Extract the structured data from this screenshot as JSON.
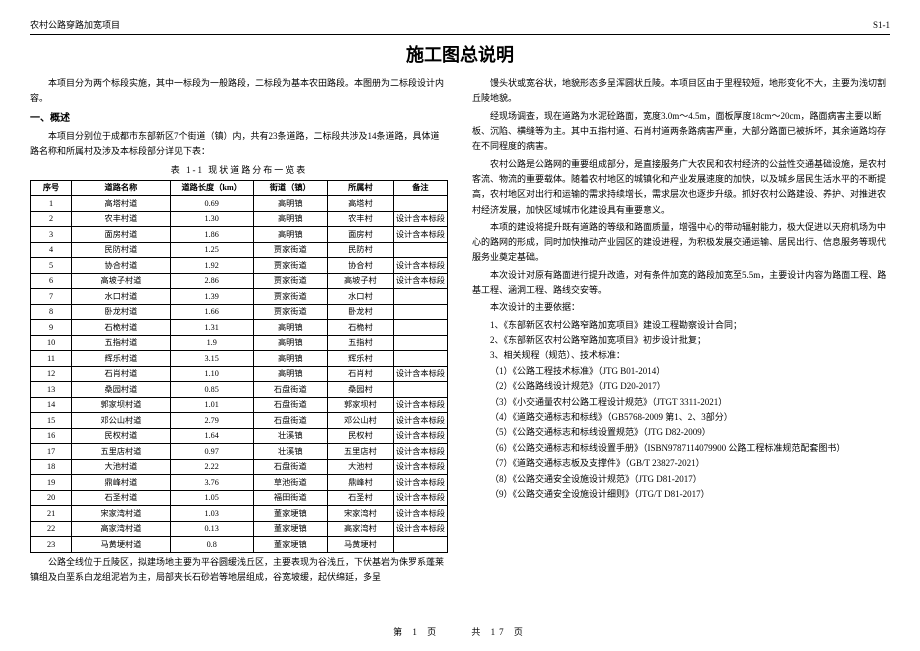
{
  "header": {
    "left": "农村公路穿路加宽项目",
    "right": "S1-1"
  },
  "title": "施工图总说明",
  "left": {
    "intro1": "本项目分为两个标段实施，其中一标段为一般路段，二标段为基本农田路段。本图册为二标段设计内容。",
    "section1": "一、概述",
    "intro2": "本项目分别位于成都市东部新区7个街道（镇）内，共有23条道路，二标段共涉及14条道路，具体道路名称和所属村及涉及本标段部分详见下表：",
    "table_caption": "表 1-1  现状道路分布一览表",
    "columns": [
      "序号",
      "道路名称",
      "道路长度（km）",
      "街道（镇）",
      "所属村",
      "备注"
    ],
    "rows": [
      [
        "1",
        "高塔村道",
        "0.69",
        "高明镇",
        "高塔村",
        ""
      ],
      [
        "2",
        "农丰村道",
        "1.30",
        "高明镇",
        "农丰村",
        "设计含本标段"
      ],
      [
        "3",
        "面房村道",
        "1.86",
        "高明镇",
        "面房村",
        "设计含本标段"
      ],
      [
        "4",
        "民防村道",
        "1.25",
        "贾家街道",
        "民防村",
        ""
      ],
      [
        "5",
        "协合村道",
        "1.92",
        "贾家街道",
        "协合村",
        "设计含本标段"
      ],
      [
        "6",
        "高坡子村道",
        "2.86",
        "贾家街道",
        "高坡子村",
        "设计含本标段"
      ],
      [
        "7",
        "水口村道",
        "1.39",
        "贾家街道",
        "水口村",
        ""
      ],
      [
        "8",
        "卧龙村道",
        "1.66",
        "贾家街道",
        "卧龙村",
        ""
      ],
      [
        "9",
        "石桅村道",
        "1.31",
        "高明镇",
        "石桅村",
        ""
      ],
      [
        "10",
        "五指村道",
        "1.9",
        "高明镇",
        "五指村",
        ""
      ],
      [
        "11",
        "辉乐村道",
        "3.15",
        "高明镇",
        "辉乐村",
        ""
      ],
      [
        "12",
        "石肖村道",
        "1.10",
        "高明镇",
        "石肖村",
        "设计含本标段"
      ],
      [
        "13",
        "桑园村道",
        "0.85",
        "石盘街道",
        "桑园村",
        ""
      ],
      [
        "14",
        "郭家坝村道",
        "1.01",
        "石盘街道",
        "郭家坝村",
        "设计含本标段"
      ],
      [
        "15",
        "邓公山村道",
        "2.79",
        "石盘街道",
        "邓公山村",
        "设计含本标段"
      ],
      [
        "16",
        "民权村道",
        "1.64",
        "壮溪镇",
        "民权村",
        "设计含本标段"
      ],
      [
        "17",
        "五里店村道",
        "0.97",
        "壮溪镇",
        "五里店村",
        "设计含本标段"
      ],
      [
        "18",
        "大池村道",
        "2.22",
        "石盘街道",
        "大池村",
        "设计含本标段"
      ],
      [
        "19",
        "鼎峰村道",
        "3.76",
        "草池街道",
        "鼎峰村",
        "设计含本标段"
      ],
      [
        "20",
        "石圣村道",
        "1.05",
        "福田街道",
        "石圣村",
        "设计含本标段"
      ],
      [
        "21",
        "宋家湾村道",
        "1.03",
        "董家埂镇",
        "宋家湾村",
        "设计含本标段"
      ],
      [
        "22",
        "高家湾村道",
        "0.13",
        "董家埂镇",
        "高家湾村",
        "设计含本标段"
      ],
      [
        "23",
        "马黄埂村道",
        "0.8",
        "董家埂镇",
        "马黄埂村",
        ""
      ]
    ],
    "after_table": "公路全线位于丘陵区，拟建场地主要为平谷圆缓浅丘区，主要表现为谷浅丘，下伏基岩为侏罗系蓬莱镇组及白垩系白龙组泥岩为主，局部夹长石砂岩等地层组成，谷宽坡缓，起伏绵延，多呈"
  },
  "right": {
    "p1": "馒头状或宽谷状，地貌形态多呈浑圆状丘陵。本项目区由于里程较短，地形变化不大，主要为浅切割丘陵地貌。",
    "p2": "经现场调查，现在道路为水泥砼路面，宽度3.0m～4.5m，面板厚度18cm～20cm，路面病害主要以断板、沉陷、横缝等为主。其中五指村道、石肖村道两条路病害严重，大部分路面已被拆坏，其余道路均存在不同程度的病害。",
    "p3": "农村公路是公路网的重要组成部分，是直接服务广大农民和农村经济的公益性交通基础设施，是农村客流、物流的重要载体。随着农村地区的城镇化和产业发展速度的加快，以及城乡居民生活水平的不断提高，农村地区对出行和运输的需求持续增长，需求层次也逐步升级。抓好农村公路建设、养护、对推进农村经济发展，加快区域城市化建设具有重要意义。",
    "p4": "本项的建设将提升既有道路的等级和路面质量，增强中心的带动辐射能力，极大促进以天府机场为中心的路网的形成，同时加快推动产业园区的建设进程，为积极发展交通运输、居民出行、信息服务等现代服务业奠定基础。",
    "p5": "本次设计对原有路面进行提升改造，对有条件加宽的路段加宽至5.5m，主要设计内容为路面工程、路基工程、涵洞工程、路线交安等。",
    "p6": "本次设计的主要依据：",
    "items": [
      "1、《东部新区农村公路窄路加宽项目》建设工程勘察设计合同；",
      "2、《东部新区农村公路窄路加宽项目》初步设计批复；",
      "3、相关规程（规范）、技术标准："
    ],
    "refs": [
      "（1）《公路工程技术标准》（JTG B01-2014）",
      "（2）《公路路线设计规范》（JTG D20-2017）",
      "（3）《小交通量农村公路工程设计规范》（JTGT 3311-2021）",
      "（4）《道路交通标志和标线》（GB5768-2009 第1、2、3部分）",
      "（5）《公路交通标志和标线设置规范》（JTG D82-2009）",
      "（6）《公路交通标志和标线设置手册》（ISBN9787114079900 公路工程标准规范配套图书）",
      "（7）《道路交通标志板及支撑件》（GB/T 23827-2021）",
      "（8）《公路交通安全设施设计规范》（JTG D81-2017）",
      "（9）《公路交通安全设施设计细则》（JTG/T D81-2017）"
    ]
  },
  "footer": {
    "page": "第  1  页",
    "total": "共 17 页"
  }
}
